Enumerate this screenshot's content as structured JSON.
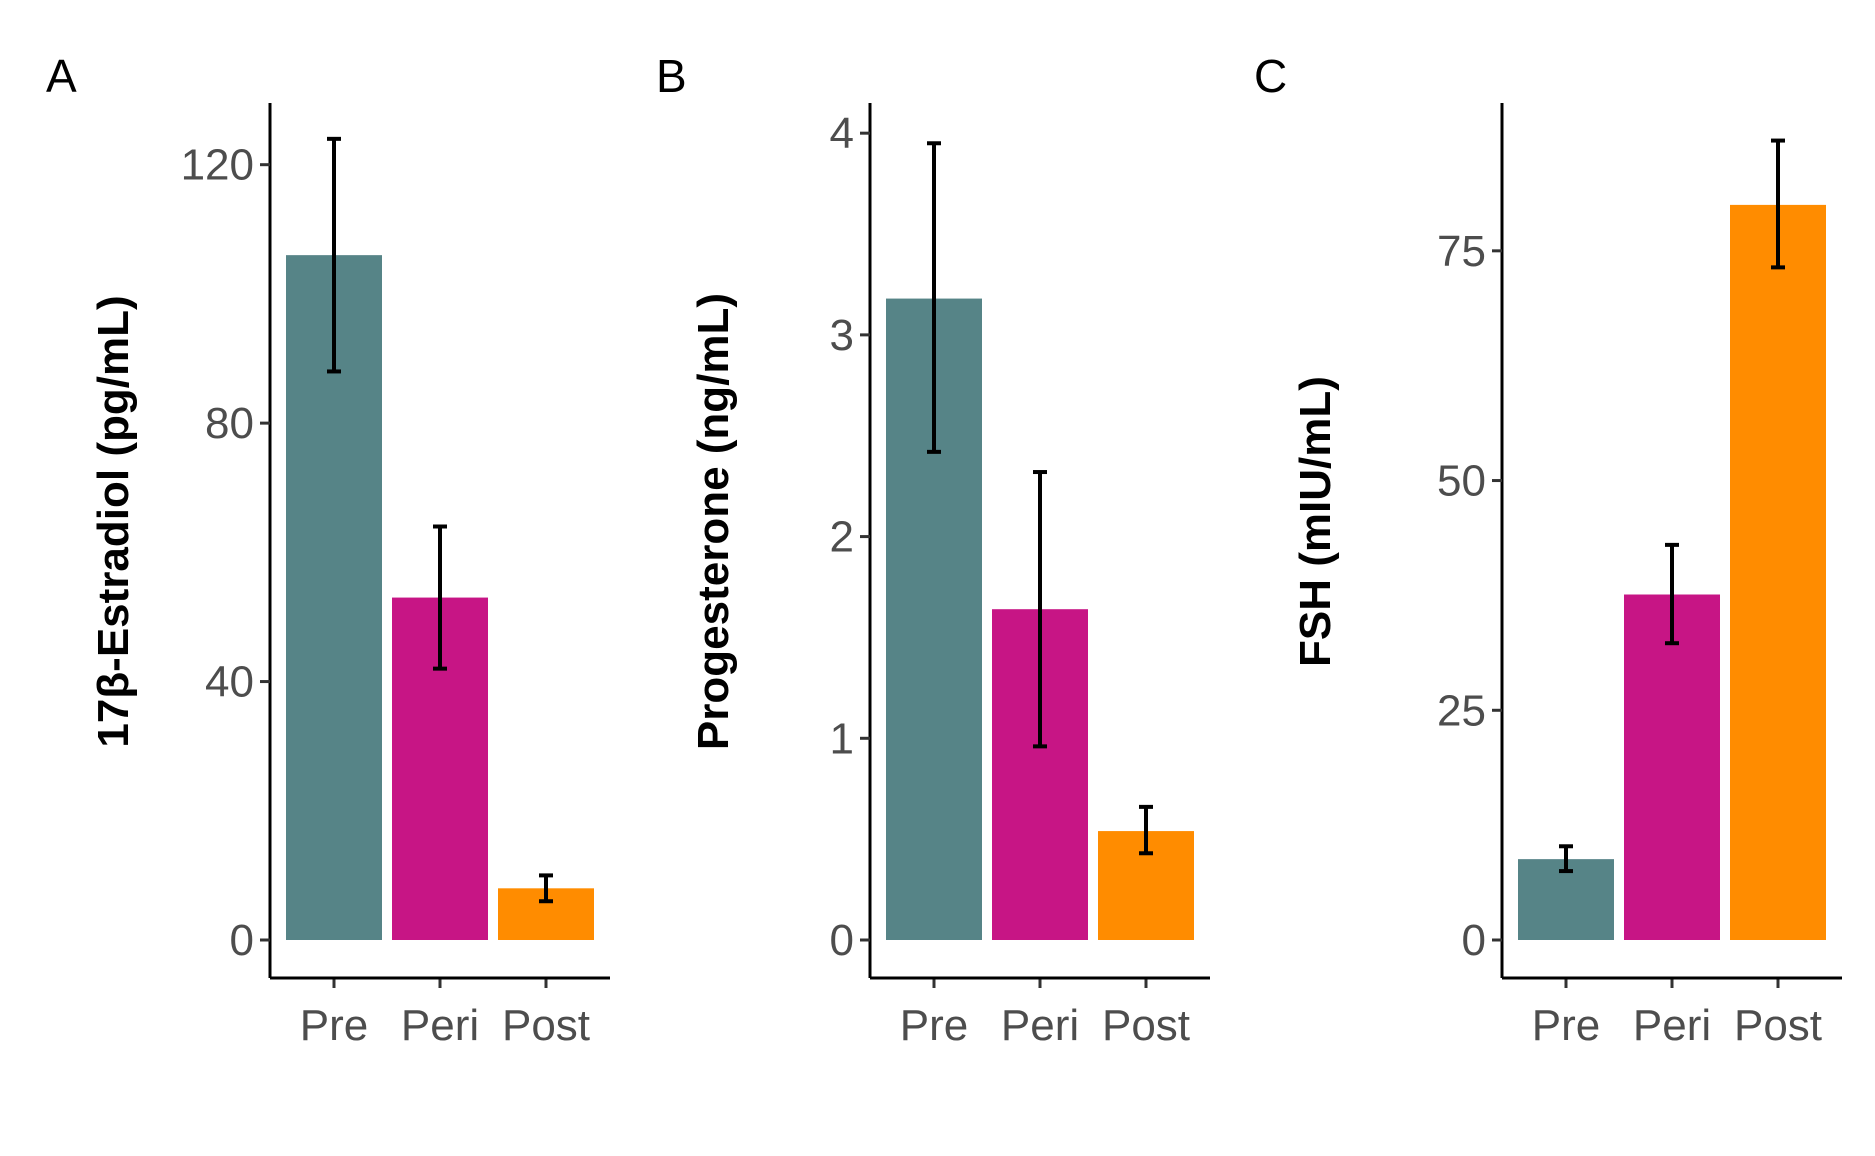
{
  "chart_data": [
    {
      "type": "bar",
      "panel_label": "A",
      "categories": [
        "Pre",
        "Peri",
        "Post"
      ],
      "values": [
        106,
        53,
        8
      ],
      "error_bars": [
        [
          88,
          124
        ],
        [
          42,
          64
        ],
        [
          6,
          10
        ]
      ],
      "colors": [
        "#568487",
        "#c71585",
        "#ff8c00"
      ],
      "ylabel": "17β-Estradiol (pg/mL)",
      "ylim": [
        0,
        128
      ],
      "yticks": [
        0,
        40,
        80,
        120
      ],
      "grid": false
    },
    {
      "type": "bar",
      "panel_label": "B",
      "categories": [
        "Pre",
        "Peri",
        "Post"
      ],
      "values": [
        3.18,
        1.64,
        0.54
      ],
      "error_bars": [
        [
          2.42,
          3.95
        ],
        [
          0.96,
          2.32
        ],
        [
          0.43,
          0.66
        ]
      ],
      "colors": [
        "#568487",
        "#c71585",
        "#ff8c00"
      ],
      "ylabel": "Progesterone (ng/mL)",
      "ylim": [
        0,
        4.1
      ],
      "yticks": [
        0,
        1,
        2,
        3,
        4
      ],
      "grid": false
    },
    {
      "type": "bar",
      "panel_label": "C",
      "categories": [
        "Pre",
        "Peri",
        "Post"
      ],
      "values": [
        8.8,
        37.6,
        80
      ],
      "error_bars": [
        [
          7.5,
          10.2
        ],
        [
          32.3,
          43
        ],
        [
          73.2,
          87
        ]
      ],
      "colors": [
        "#568487",
        "#c71585",
        "#ff8c00"
      ],
      "ylabel": "FSH (mIU/mL)",
      "ylim": [
        0,
        90
      ],
      "yticks": [
        0,
        25,
        50,
        75
      ],
      "grid": false
    }
  ]
}
